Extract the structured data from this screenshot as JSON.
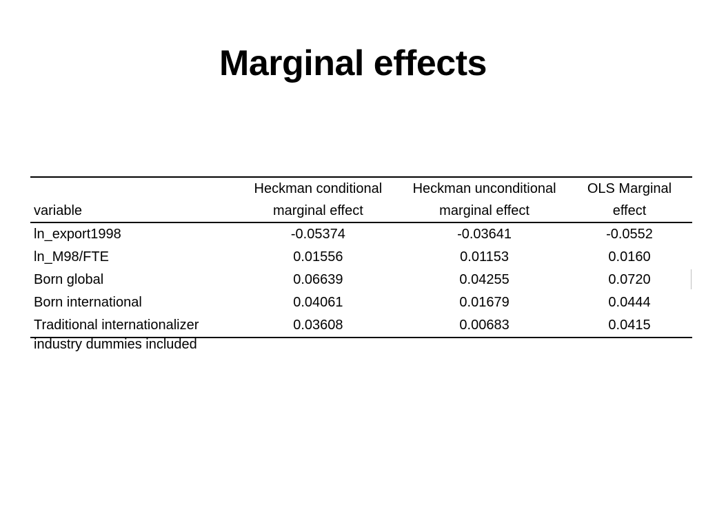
{
  "slide": {
    "title": "Marginal effects"
  },
  "table": {
    "headers": {
      "variable": "variable",
      "heckman_conditional": [
        "Heckman conditional",
        "marginal effect"
      ],
      "heckman_unconditional": [
        "Heckman unconditional",
        "marginal effect"
      ],
      "ols": [
        "OLS Marginal",
        "effect"
      ]
    },
    "rows": [
      {
        "variable": "ln_export1998",
        "heckman_conditional": "-0.05374",
        "heckman_unconditional": "-0.03641",
        "ols": "-0.0552"
      },
      {
        "variable": "ln_M98/FTE",
        "heckman_conditional": "0.01556",
        "heckman_unconditional": "0.01153",
        "ols": "0.0160"
      },
      {
        "variable": "Born global",
        "heckman_conditional": "0.06639",
        "heckman_unconditional": "0.04255",
        "ols": "0.0720"
      },
      {
        "variable": "Born international",
        "heckman_conditional": "0.04061",
        "heckman_unconditional": "0.01679",
        "ols": "0.0444"
      },
      {
        "variable": "Traditional internationalizer",
        "heckman_conditional": "0.03608",
        "heckman_unconditional": "0.00683",
        "ols": "0.0415"
      }
    ],
    "footnote": "industry dummies included"
  }
}
